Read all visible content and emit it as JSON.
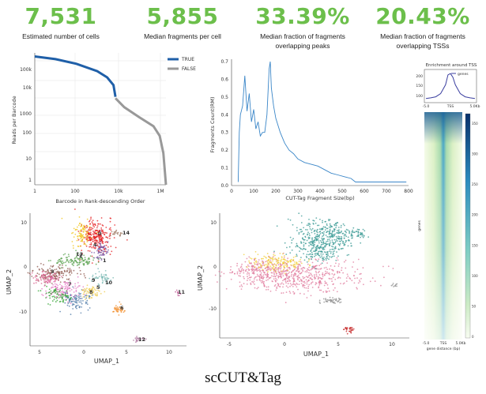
{
  "metrics": [
    {
      "value": "7,531",
      "label": "Estimated number of cells"
    },
    {
      "value": "5,855",
      "label": "Median fragments per cell"
    },
    {
      "value": "33.39%",
      "label": "Median fraction of fragments overlapping peaks"
    },
    {
      "value": "20.43%",
      "label": "Median fraction of fragments overlapping TSSs"
    }
  ],
  "colors": {
    "metric": "#6cbf4b",
    "true_line": "#1f5fa8",
    "false_line": "#999999",
    "frag_line": "#3a86c8",
    "tss_line": "#3b3fa0"
  },
  "caption": "scCUT&Tag",
  "chart_data": [
    {
      "type": "line",
      "title": "",
      "xlabel": "Barcode in Rank-descending Order",
      "ylabel": "Reads per Barcode",
      "xscale": "log",
      "yscale": "log",
      "x_ticks": [
        "1",
        "100",
        "10k",
        "1M"
      ],
      "y_ticks": [
        "100k",
        "10k",
        "1000",
        "100",
        "10",
        "1"
      ],
      "legend": {
        "position": "top-right",
        "entries": [
          "TRUE",
          "FALSE"
        ]
      },
      "series": [
        {
          "name": "TRUE",
          "x": [
            1,
            10,
            100,
            1000,
            3000,
            6000,
            7500
          ],
          "y": [
            180000,
            140000,
            90000,
            45000,
            25000,
            12000,
            4000
          ]
        },
        {
          "name": "FALSE",
          "x": [
            7500,
            20000,
            100000,
            500000,
            1000000,
            1500000,
            2000000
          ],
          "y": [
            3500,
            1500,
            600,
            250,
            100,
            20,
            1
          ]
        }
      ]
    },
    {
      "type": "line",
      "title": "",
      "xlabel": "CUT-Tag Fragment Size(bp)",
      "ylabel": "Fragments Count(RM)",
      "xlim": [
        0,
        800
      ],
      "ylim": [
        0,
        0.7
      ],
      "x_ticks": [
        "0",
        "100",
        "200",
        "300",
        "400",
        "500",
        "600",
        "700",
        "800"
      ],
      "y_ticks": [
        "0.0",
        "0.1",
        "0.2",
        "0.3",
        "0.4",
        "0.5",
        "0.6",
        "0.7"
      ],
      "series": [
        {
          "name": "fragments",
          "x": [
            30,
            35,
            40,
            50,
            60,
            70,
            80,
            90,
            100,
            110,
            120,
            130,
            140,
            150,
            160,
            170,
            175,
            180,
            190,
            200,
            220,
            240,
            260,
            280,
            300,
            330,
            360,
            390,
            420,
            450,
            480,
            510,
            540,
            560,
            600,
            700,
            790
          ],
          "y": [
            0.02,
            0.3,
            0.4,
            0.45,
            0.62,
            0.42,
            0.52,
            0.36,
            0.43,
            0.32,
            0.36,
            0.28,
            0.3,
            0.3,
            0.4,
            0.66,
            0.7,
            0.55,
            0.45,
            0.38,
            0.3,
            0.24,
            0.2,
            0.18,
            0.15,
            0.13,
            0.12,
            0.11,
            0.09,
            0.07,
            0.06,
            0.05,
            0.04,
            0.02,
            0.02,
            0.02,
            0.02
          ]
        }
      ]
    },
    {
      "type": "line",
      "title": "Enrichment around TSS",
      "xlabel": "",
      "ylabel": "",
      "x_ticks": [
        "-5.0",
        "TSS",
        "5.0Kb"
      ],
      "y_ticks": [
        "200",
        "150",
        "100"
      ],
      "legend": {
        "position": "top-right",
        "entries": [
          "genes"
        ]
      },
      "series": [
        {
          "name": "genes",
          "x": [
            -5,
            -4,
            -3,
            -2,
            -1,
            -0.5,
            0,
            0.5,
            1,
            2,
            3,
            4,
            5
          ],
          "y": [
            105,
            108,
            112,
            125,
            160,
            200,
            205,
            190,
            160,
            125,
            112,
            108,
            105
          ]
        }
      ]
    },
    {
      "type": "heatmap",
      "title": "",
      "xlabel": "gene distance (bp)",
      "ylabel": "genes",
      "x_ticks": [
        "-5.0",
        "TSS",
        "5.0Kb"
      ],
      "colorbar_ticks": [
        "350",
        "300",
        "250",
        "200",
        "150",
        "100",
        "50",
        "0"
      ]
    },
    {
      "type": "scatter",
      "title": "",
      "xlabel": "UMAP_1",
      "ylabel": "UMAP_2",
      "x_ticks": [
        "5",
        "0",
        "5",
        "10"
      ],
      "y_ticks": [
        "10",
        "0",
        "-10"
      ],
      "cluster_labels": [
        "0",
        "1",
        "2",
        "3",
        "4",
        "5",
        "6",
        "7",
        "8",
        "9",
        "10",
        "11",
        "12",
        "13",
        "14"
      ]
    },
    {
      "type": "scatter",
      "title": "",
      "xlabel": "UMAP_1",
      "ylabel": "UMAP_2",
      "x_ticks": [
        "-5",
        "0",
        "5",
        "10"
      ],
      "y_ticks": [
        "10",
        "0",
        "-10"
      ]
    }
  ]
}
